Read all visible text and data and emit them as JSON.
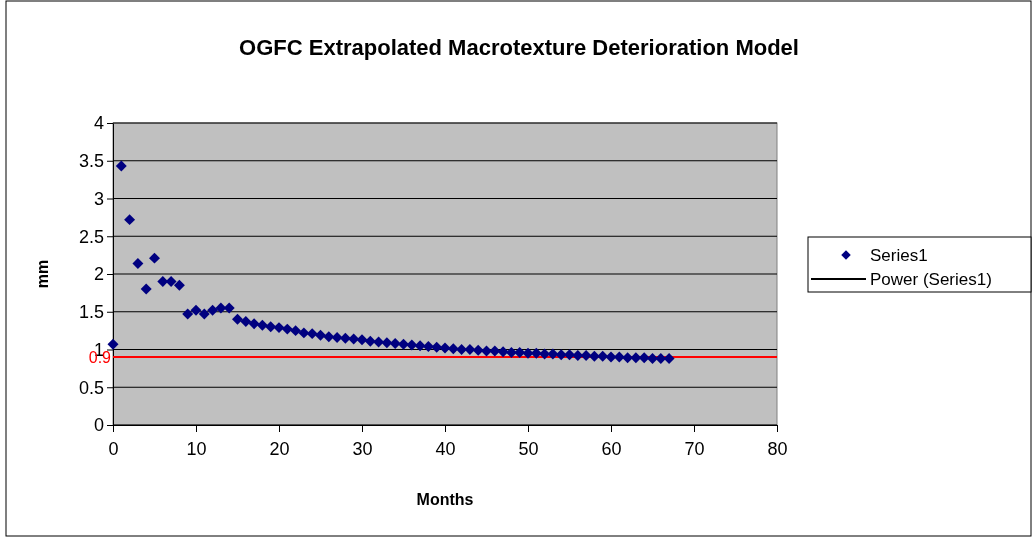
{
  "chart_data": {
    "type": "scatter",
    "title": "OGFC Extrapolated Macrotexture Deterioration Model",
    "xlabel": "Months",
    "ylabel": "mm",
    "x": [
      0,
      1,
      2,
      3,
      4,
      5,
      6,
      7,
      8,
      9,
      10,
      11,
      12,
      13,
      14,
      15,
      16,
      17,
      18,
      19,
      20,
      21,
      22,
      23,
      24,
      25,
      26,
      27,
      28,
      29,
      30,
      31,
      32,
      33,
      34,
      35,
      36,
      37,
      38,
      39,
      40,
      41,
      42,
      43,
      44,
      45,
      46,
      47,
      48,
      49,
      50,
      51,
      52,
      53,
      54,
      55,
      56,
      57,
      58,
      59,
      60,
      61,
      62,
      63,
      64,
      65,
      66,
      67
    ],
    "series": [
      {
        "name": "Series1",
        "color": "#000080",
        "marker": "diamond",
        "values": [
          1.07,
          3.43,
          2.72,
          2.14,
          1.8,
          2.21,
          1.9,
          1.9,
          1.85,
          1.47,
          1.52,
          1.47,
          1.52,
          1.55,
          1.55,
          1.4,
          1.37,
          1.34,
          1.32,
          1.3,
          1.29,
          1.27,
          1.25,
          1.22,
          1.21,
          1.19,
          1.17,
          1.16,
          1.15,
          1.14,
          1.13,
          1.11,
          1.1,
          1.09,
          1.08,
          1.07,
          1.06,
          1.05,
          1.04,
          1.03,
          1.02,
          1.01,
          1.0,
          1.0,
          0.99,
          0.98,
          0.98,
          0.97,
          0.96,
          0.96,
          0.95,
          0.95,
          0.94,
          0.94,
          0.93,
          0.93,
          0.92,
          0.92,
          0.91,
          0.91,
          0.9,
          0.9,
          0.89,
          0.89,
          0.89,
          0.88,
          0.88,
          0.88
        ]
      },
      {
        "name": "Power (Series1)",
        "type": "line",
        "color": "#000000",
        "values": [
          null,
          null,
          null,
          null,
          null,
          null,
          null,
          null,
          null,
          null,
          null,
          null,
          null,
          null,
          null,
          null,
          null,
          null,
          null,
          null,
          null,
          null,
          null,
          null,
          null,
          null,
          null,
          null,
          null,
          null,
          null,
          null,
          null,
          null,
          null,
          null,
          null,
          null,
          null,
          null,
          null,
          null,
          null,
          null,
          null,
          null,
          null,
          null,
          null,
          null,
          null,
          null,
          null,
          null,
          null,
          null,
          null,
          null,
          null,
          null,
          null,
          null,
          null,
          null,
          null,
          null,
          null,
          null
        ]
      }
    ],
    "xlim": [
      0,
      80
    ],
    "xticks": [
      0,
      10,
      20,
      30,
      40,
      50,
      60,
      70,
      80
    ],
    "ylim": [
      0,
      4
    ],
    "yticks": [
      0,
      0.5,
      1,
      1.5,
      2,
      2.5,
      3,
      3.5,
      4
    ],
    "ref_lines": [
      {
        "axis": "y",
        "value": 0.9,
        "label": "0.9",
        "color": "#ff0000"
      }
    ],
    "grid": "y",
    "legend": "right"
  }
}
